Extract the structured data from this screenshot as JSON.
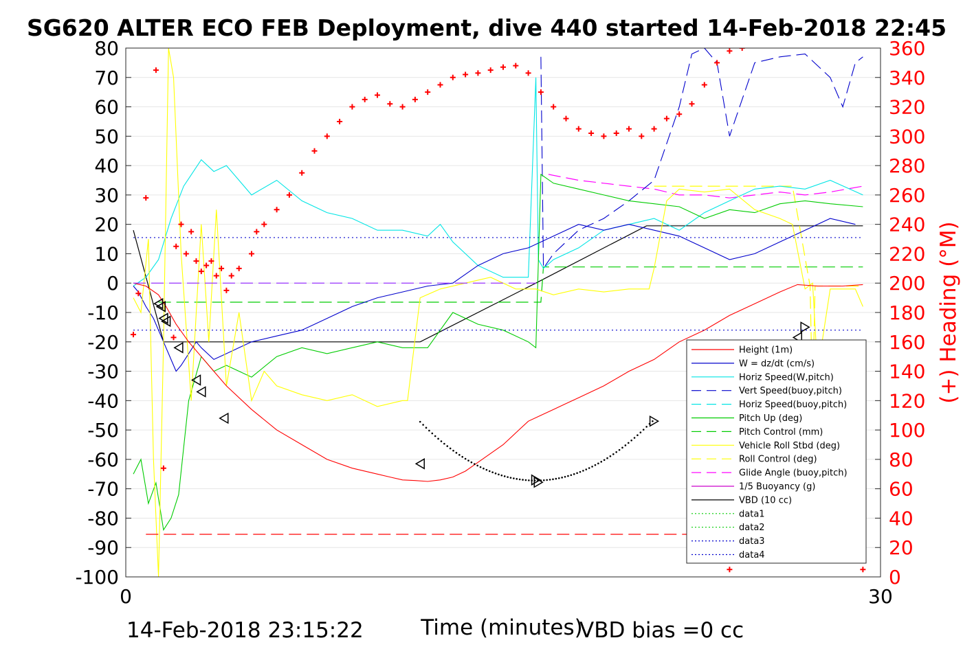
{
  "chart_data": {
    "type": "line",
    "title": "SG620 ALTER ECO FEB Deployment, dive 440 started 14-Feb-2018 22:45",
    "xlabel": "Time (minutes)",
    "ylabel_right": "(+) Heading (°M)",
    "xlim": [
      0,
      30
    ],
    "ylim": [
      -100,
      80
    ],
    "y2lim": [
      0,
      360
    ],
    "x_ticks": [
      "0",
      "30"
    ],
    "y_ticks": [
      "80",
      "70",
      "60",
      "50",
      "40",
      "30",
      "20",
      "10",
      "0",
      "-10",
      "-20",
      "-30",
      "-40",
      "-50",
      "-60",
      "-70",
      "-80",
      "-90",
      "-100"
    ],
    "y2_ticks": [
      "360",
      "340",
      "320",
      "300",
      "280",
      "260",
      "240",
      "220",
      "200",
      "180",
      "160",
      "140",
      "120",
      "100",
      "80",
      "60",
      "40",
      "20",
      "0"
    ],
    "footer_left": "14-Feb-2018 23:15:22",
    "footer_right": "VBD bias =0 cc",
    "legend_position": "lower-right",
    "grid": "horizontal",
    "legend": [
      {
        "label": "Height (1m)",
        "color": "#ff0000",
        "style": "solid"
      },
      {
        "label": "W = dz/dt (cm/s)",
        "color": "#0000cc",
        "style": "solid"
      },
      {
        "label": "Horiz Speed(W,pitch)",
        "color": "#00e5e5",
        "style": "solid"
      },
      {
        "label": "Vert Speed(buoy,pitch)",
        "color": "#0000cc",
        "style": "dashed"
      },
      {
        "label": "Horiz Speed(buoy,pitch)",
        "color": "#00e5e5",
        "style": "dashed"
      },
      {
        "label": "Pitch Up (deg)",
        "color": "#00cc00",
        "style": "solid"
      },
      {
        "label": "Pitch Control (mm)",
        "color": "#00cc00",
        "style": "dashed"
      },
      {
        "label": "Vehicle Roll Stbd (deg)",
        "color": "#ffff00",
        "style": "solid"
      },
      {
        "label": "Roll Control (deg)",
        "color": "#ffff00",
        "style": "dashed"
      },
      {
        "label": "Glide Angle (buoy,pitch)",
        "color": "#ff00ff",
        "style": "dashed"
      },
      {
        "label": "1/5 Buoyancy (g)",
        "color": "#cc00cc",
        "style": "solid"
      },
      {
        "label": "VBD (10 cc)",
        "color": "#000000",
        "style": "solid"
      },
      {
        "label": "data1",
        "color": "#00cc00",
        "style": "dotted"
      },
      {
        "label": "data2",
        "color": "#00cc00",
        "style": "dotted"
      },
      {
        "label": "data3",
        "color": "#0000cc",
        "style": "dotted"
      },
      {
        "label": "data4",
        "color": "#0000cc",
        "style": "dotted"
      }
    ],
    "series": [
      {
        "name": "Height (1m)",
        "color": "#ff0000",
        "style": "solid",
        "x": [
          0.3,
          0.8,
          1.3,
          1.6,
          2.0,
          2.5,
          3.0,
          3.5,
          4.0,
          5.0,
          6.0,
          7.0,
          8.0,
          9.0,
          10.0,
          10.5,
          11.0,
          11.5,
          12.0,
          12.5,
          13.0,
          13.5,
          14.0,
          14.5,
          15.0,
          15.5,
          16.0,
          16.5,
          17.0,
          17.5,
          18.0,
          19.0,
          20.0,
          21.0,
          22.0,
          23.0,
          24.0,
          25.0,
          26.0,
          26.7,
          27.5,
          28.5,
          29.3
        ],
        "y": [
          0,
          -1,
          -4,
          -8,
          -14,
          -20,
          -25,
          -30,
          -35,
          -43,
          -50,
          -55,
          -60,
          -63,
          -65,
          -66,
          -67,
          -67.2,
          -67.5,
          -67,
          -66,
          -64,
          -61,
          -58,
          -55,
          -51,
          -47,
          -45,
          -43,
          -41,
          -39,
          -35,
          -30,
          -26,
          -20,
          -16,
          -11,
          -7,
          -3,
          -0.5,
          -1,
          -1,
          -0.5
        ]
      },
      {
        "name": "W = dz/dt (cm/s)",
        "color": "#0000cc",
        "style": "solid",
        "x": [
          0.3,
          0.5,
          0.8,
          1.1,
          1.4,
          1.7,
          2.0,
          2.2,
          2.5,
          2.8,
          3.0,
          3.5,
          4.0,
          4.5,
          5.0,
          6.0,
          7.0,
          8.0,
          9.0,
          10.0,
          11.0,
          12.0,
          13.0,
          14.0,
          15.0,
          16.0,
          17.0,
          18.0,
          19.0,
          20.0,
          21.0,
          22.0,
          23.0,
          24.0,
          25.0,
          26.0,
          27.0,
          28.0,
          29.0
        ],
        "y": [
          -1,
          -3,
          -8,
          -12,
          -18,
          -24,
          -30,
          -28,
          -24,
          -20,
          -22,
          -26,
          -24,
          -22,
          -20,
          -18,
          -16,
          -12,
          -8,
          -5,
          -3,
          -1,
          0,
          6,
          10,
          12,
          16,
          20,
          18,
          20,
          18,
          16,
          12,
          8,
          10,
          14,
          18,
          22,
          20
        ]
      }
    ]
  }
}
